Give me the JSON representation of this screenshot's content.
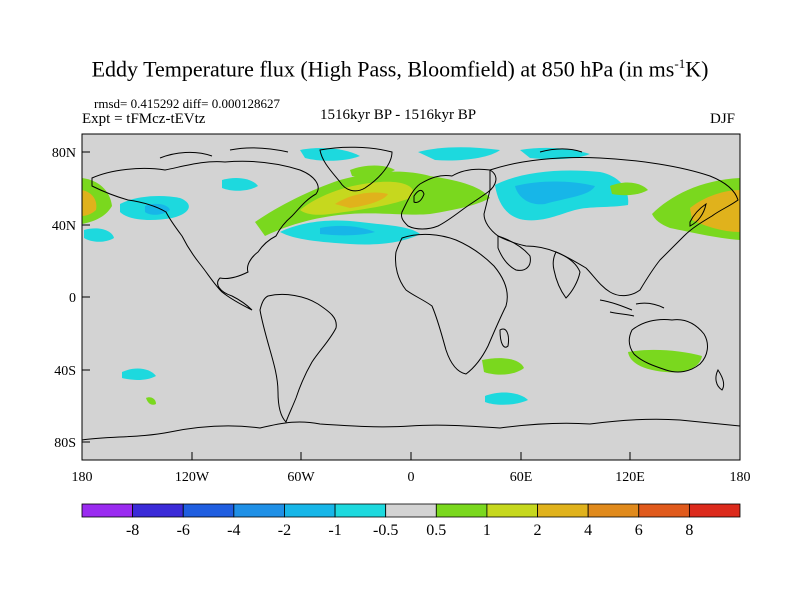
{
  "title": {
    "main": "Eddy Temperature flux (High Pass, Bloomfield) at 850 hPa (in ms",
    "sup": "-1",
    "end": "K)"
  },
  "stats": "rmsd= 0.415292 diff= 0.000128627",
  "expt": "Expt = tFMcz-tEVtz",
  "period": "1516kyr BP - 1516kyr BP",
  "season": "DJF",
  "map": {
    "projection": "cylindrical equidistant",
    "lon_range": [
      -180,
      180
    ],
    "lat_range": [
      -90,
      90
    ],
    "background_color": "#d3d3d3",
    "coastline_color": "#000000",
    "x_tick_labels": [
      "180",
      "120W",
      "60W",
      "0",
      "60E",
      "120E",
      "180"
    ],
    "y_tick_labels": [
      "80N",
      "40N",
      "0",
      "40S",
      "80S"
    ]
  },
  "colorbar": {
    "labels": [
      "-8",
      "-6",
      "-4",
      "-2",
      "-1",
      "-0.5",
      "0.5",
      "1",
      "2",
      "4",
      "6",
      "8"
    ],
    "colors": [
      "#9a2bf0",
      "#3b2bd8",
      "#1f5ee0",
      "#1f90e6",
      "#17b6e8",
      "#1dd9de",
      "#d3d3d3",
      "#7ad81e",
      "#c6d81e",
      "#e0b21c",
      "#e08a1c",
      "#e05a1c",
      "#dc2a1c"
    ]
  }
}
